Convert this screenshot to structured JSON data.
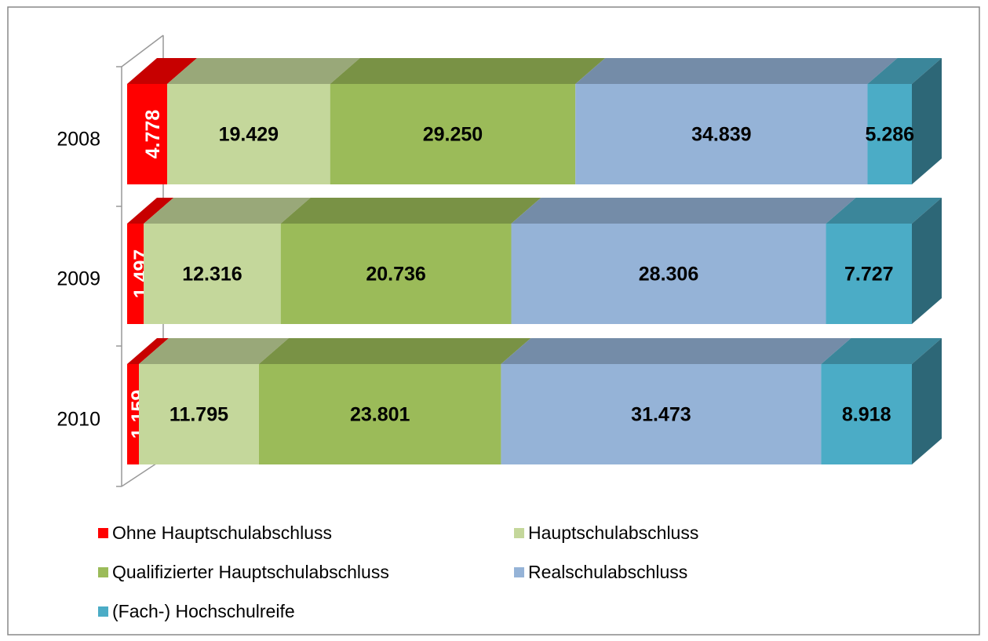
{
  "chart_data": {
    "type": "bar100h",
    "categories": [
      "2008",
      "2009",
      "2010"
    ],
    "series": [
      {
        "name": "Ohne Hauptschulabschluss",
        "color": "#ff0000",
        "values": [
          4778,
          1497,
          1159
        ],
        "value_labels": [
          "4.778",
          "1.497",
          "1.159"
        ]
      },
      {
        "name": "Hauptschulabschluss",
        "color": "#c4d79b",
        "values": [
          19429,
          12316,
          11795
        ],
        "value_labels": [
          "19.429",
          "12.316",
          "11.795"
        ]
      },
      {
        "name": "Qualifizierter Hauptschulabschluss",
        "color": "#9bbb59",
        "values": [
          29250,
          20736,
          23801
        ],
        "value_labels": [
          "29.250",
          "20.736",
          "23.801"
        ]
      },
      {
        "name": "Realschulabschluss",
        "color": "#95b3d7",
        "values": [
          34839,
          28306,
          31473
        ],
        "value_labels": [
          "34.839",
          "28.306",
          "31.473"
        ]
      },
      {
        "name": "(Fach-) Hochschulreife",
        "color": "#4bacc6",
        "values": [
          5286,
          7727,
          8918
        ],
        "value_labels": [
          "5.286",
          "7.727",
          "8.918"
        ]
      }
    ]
  }
}
